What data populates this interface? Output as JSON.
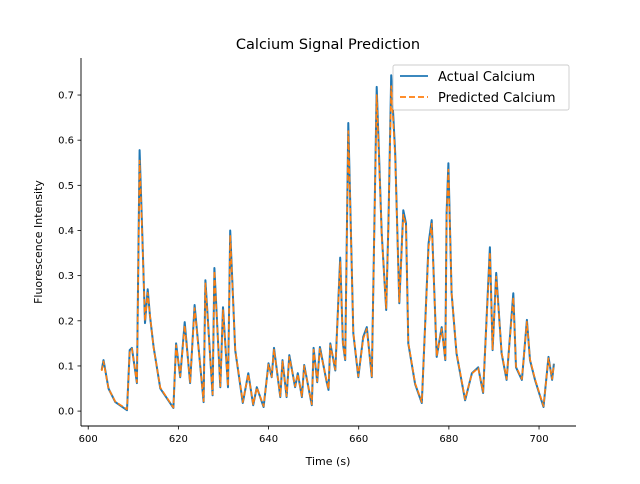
{
  "chart_data": {
    "type": "line",
    "title": "Calcium Signal Prediction",
    "xlabel": "Time (s)",
    "ylabel": "Fluorescence Intensity",
    "xlim": [
      598.4,
      708.2
    ],
    "ylim": [
      -0.033,
      0.782
    ],
    "xticks": [
      600,
      620,
      640,
      660,
      680,
      700
    ],
    "yticks": [
      0.0,
      0.1,
      0.2,
      0.3,
      0.4,
      0.5,
      0.6,
      0.7
    ],
    "xtick_labels": [
      "600",
      "620",
      "640",
      "660",
      "680",
      "700"
    ],
    "ytick_labels": [
      "0.0",
      "0.1",
      "0.2",
      "0.3",
      "0.4",
      "0.5",
      "0.6",
      "0.7"
    ],
    "grid": false,
    "legend_position": "top-right",
    "x": [
      603.0,
      603.4,
      604.5,
      606,
      608.6,
      609.2,
      609.7,
      610.8,
      611.4,
      611.9,
      612.6,
      613.2,
      613.7,
      614.5,
      616,
      618.9,
      619.5,
      620.4,
      621.4,
      622.6,
      623.6,
      625.6,
      626,
      627.6,
      628,
      629.3,
      629.9,
      631,
      631.5,
      632.6,
      634.3,
      635.5,
      636.6,
      637.4,
      638.9,
      640,
      640.7,
      641.2,
      642.6,
      643.1,
      644,
      644.6,
      645.9,
      646.5,
      647.4,
      647.9,
      649.6,
      650,
      650.8,
      651.4,
      652.9,
      653.3,
      653.7,
      654.8,
      655.9,
      656.5,
      657,
      657.7,
      658.1,
      658.8,
      659.9,
      661,
      661.8,
      662.9,
      664,
      665.1,
      666.1,
      666.6,
      667.2,
      668.1,
      669,
      669.9,
      670.5,
      671,
      672.5,
      674,
      675.5,
      676.2,
      677.3,
      678.4,
      679.2,
      679.5,
      679.9,
      680.6,
      681.7,
      683.6,
      685.1,
      686.5,
      687.6,
      689.1,
      689.7,
      690.5,
      691.7,
      692.8,
      694.3,
      694.9,
      696.2,
      697.3,
      698,
      699.1,
      701,
      702.1,
      702.9,
      703.3
    ],
    "series": [
      {
        "name": "Actual Calcium",
        "color": "#1f77b4",
        "style": "solid",
        "values": [
          0.091,
          0.113,
          0.05,
          0.02,
          0.002,
          0.135,
          0.14,
          0.062,
          0.578,
          0.42,
          0.195,
          0.27,
          0.21,
          0.142,
          0.05,
          0.007,
          0.15,
          0.075,
          0.197,
          0.062,
          0.235,
          0.02,
          0.29,
          0.035,
          0.317,
          0.053,
          0.23,
          0.053,
          0.4,
          0.135,
          0.018,
          0.084,
          0.013,
          0.053,
          0.009,
          0.106,
          0.075,
          0.14,
          0.031,
          0.113,
          0.031,
          0.124,
          0.053,
          0.084,
          0.031,
          0.102,
          0.013,
          0.14,
          0.064,
          0.142,
          0.064,
          0.047,
          0.15,
          0.09,
          0.34,
          0.15,
          0.113,
          0.638,
          0.474,
          0.173,
          0.075,
          0.164,
          0.186,
          0.075,
          0.718,
          0.394,
          0.224,
          0.423,
          0.744,
          0.571,
          0.239,
          0.445,
          0.416,
          0.15,
          0.06,
          0.018,
          0.372,
          0.423,
          0.12,
          0.186,
          0.113,
          0.439,
          0.549,
          0.261,
          0.128,
          0.024,
          0.084,
          0.097,
          0.04,
          0.363,
          0.135,
          0.306,
          0.128,
          0.069,
          0.261,
          0.097,
          0.069,
          0.202,
          0.113,
          0.069,
          0.009,
          0.12,
          0.069,
          0.105
        ]
      },
      {
        "name": "Predicted Calcium",
        "color": "#ff7f0e",
        "style": "dashed",
        "values": [
          0.089,
          0.11,
          0.05,
          0.021,
          0.004,
          0.13,
          0.138,
          0.064,
          0.555,
          0.41,
          0.2,
          0.262,
          0.212,
          0.14,
          0.052,
          0.008,
          0.146,
          0.077,
          0.19,
          0.064,
          0.228,
          0.022,
          0.283,
          0.037,
          0.31,
          0.055,
          0.224,
          0.055,
          0.39,
          0.137,
          0.02,
          0.082,
          0.015,
          0.052,
          0.011,
          0.103,
          0.076,
          0.136,
          0.033,
          0.11,
          0.033,
          0.12,
          0.055,
          0.082,
          0.033,
          0.1,
          0.015,
          0.136,
          0.066,
          0.138,
          0.066,
          0.049,
          0.146,
          0.092,
          0.33,
          0.152,
          0.115,
          0.62,
          0.465,
          0.176,
          0.077,
          0.16,
          0.182,
          0.077,
          0.7,
          0.39,
          0.228,
          0.415,
          0.72,
          0.56,
          0.242,
          0.435,
          0.41,
          0.152,
          0.062,
          0.02,
          0.362,
          0.415,
          0.122,
          0.182,
          0.115,
          0.43,
          0.535,
          0.262,
          0.13,
          0.026,
          0.083,
          0.095,
          0.042,
          0.352,
          0.137,
          0.298,
          0.13,
          0.071,
          0.252,
          0.099,
          0.071,
          0.198,
          0.115,
          0.071,
          0.011,
          0.117,
          0.071,
          0.103
        ]
      }
    ]
  }
}
